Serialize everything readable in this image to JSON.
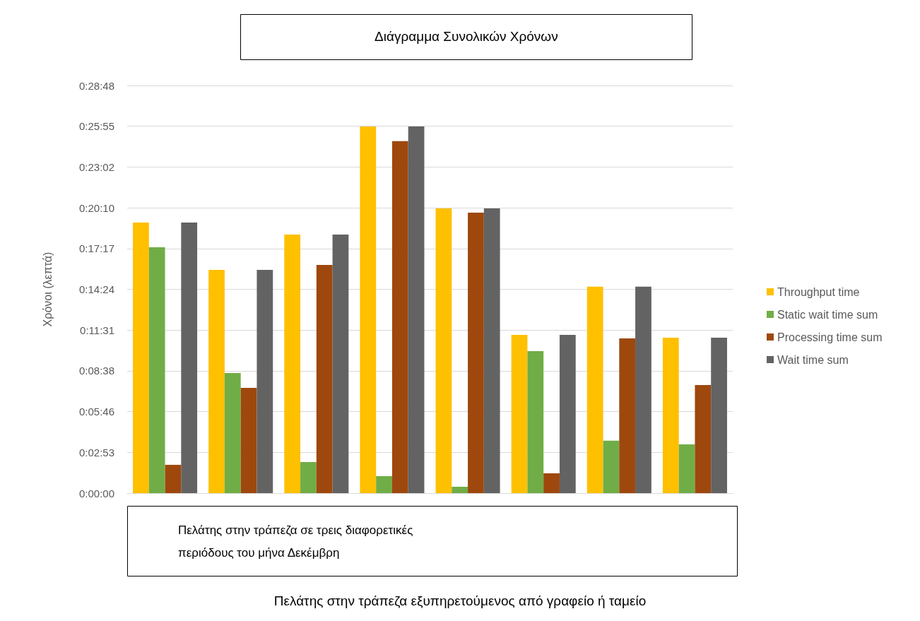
{
  "chart_data": {
    "type": "bar",
    "title": "Διάγραμμα Συνολικών Χρόνων",
    "xlabel": "Πελάτης στην τράπεζα σε τρεις διαφορετικές περιόδους του μήνα Δεκέμβρη",
    "ylabel": "Χρόνοι (λεπτά)",
    "annotations": [
      "Πελάτης στην τράπεζα εξυπηρετούμενος από γραφείο ή ταμείο"
    ],
    "categories": [
      null,
      null,
      null,
      null,
      null,
      null,
      null,
      null
    ],
    "series": [
      {
        "name": "Throughput time",
        "color": "#ffc000",
        "values": [
          1147,
          946,
          1096,
          1554,
          1207,
          671,
          875,
          659
        ]
      },
      {
        "name": "Static wait time sum",
        "color": "#70ad47",
        "values": [
          1042,
          509,
          132,
          72,
          27,
          602,
          222,
          207
        ]
      },
      {
        "name": "Processing time sum",
        "color": "#9e480e",
        "values": [
          120,
          446,
          967,
          1492,
          1189,
          84,
          656,
          458
        ]
      },
      {
        "name": "Wait time sum",
        "color": "#636363",
        "values": [
          1147,
          946,
          1096,
          1554,
          1207,
          671,
          875,
          659
        ]
      }
    ],
    "ylim": [
      0,
      1728
    ],
    "yticks": [
      {
        "value": 0,
        "label": "0:00:00"
      },
      {
        "value": 172.8,
        "label": "0:02:53"
      },
      {
        "value": 345.6,
        "label": "0:05:46"
      },
      {
        "value": 518.4,
        "label": "0:08:38"
      },
      {
        "value": 691.2,
        "label": "0:11:31"
      },
      {
        "value": 864,
        "label": "0:14:24"
      },
      {
        "value": 1036.8,
        "label": "0:17:17"
      },
      {
        "value": 1209.6,
        "label": "0:20:10"
      },
      {
        "value": 1382.4,
        "label": "0:23:02"
      },
      {
        "value": 1555.2,
        "label": "0:25:55"
      },
      {
        "value": 1728,
        "label": "0:28:48"
      }
    ],
    "grid": "y",
    "legend": "right"
  }
}
